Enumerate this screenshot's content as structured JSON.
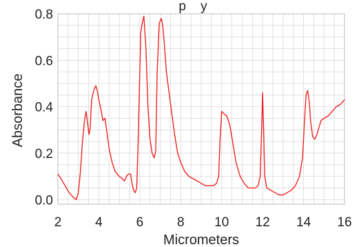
{
  "chart_data": {
    "type": "line",
    "title_fragment": "p    y",
    "xlabel": "Micrometers",
    "ylabel": "Absorbance",
    "xlim": [
      2,
      16
    ],
    "ylim": [
      -0.02,
      0.8
    ],
    "x_ticks": [
      "2",
      "4",
      "6",
      "8",
      "10",
      "12",
      "14",
      "16"
    ],
    "y_ticks": [
      "0.0",
      "0.2",
      "0.4",
      "0.6",
      "0.8"
    ],
    "x_tick_values": [
      2,
      4,
      6,
      8,
      10,
      12,
      14,
      16
    ],
    "y_tick_values": [
      0.0,
      0.2,
      0.4,
      0.6,
      0.8
    ],
    "grid": true,
    "colors": {
      "line": "#ee2222",
      "grid": "#d9d9d9",
      "frame": "#bbbbbb"
    },
    "series": [
      {
        "x": [
          2.0,
          2.15,
          2.35,
          2.55,
          2.75,
          2.9,
          3.0,
          3.1,
          3.2,
          3.3,
          3.38,
          3.45,
          3.52,
          3.58,
          3.65,
          3.75,
          3.85,
          3.92,
          4.0,
          4.1,
          4.2,
          4.3,
          4.38,
          4.5,
          4.65,
          4.8,
          5.0,
          5.15,
          5.25,
          5.35,
          5.45,
          5.55,
          5.62,
          5.7,
          5.78,
          5.85,
          5.92,
          6.0,
          6.05,
          6.12,
          6.2,
          6.3,
          6.4,
          6.5,
          6.6,
          6.7,
          6.78,
          6.85,
          6.95,
          7.05,
          7.12,
          7.2,
          7.3,
          7.4,
          7.55,
          7.7,
          7.85,
          8.0,
          8.2,
          8.4,
          8.6,
          8.8,
          9.0,
          9.2,
          9.4,
          9.6,
          9.75,
          9.85,
          9.92,
          10.0,
          10.1,
          10.25,
          10.4,
          10.55,
          10.7,
          10.9,
          11.1,
          11.3,
          11.5,
          11.65,
          11.78,
          11.88,
          11.95,
          12.0,
          12.05,
          12.1,
          12.2,
          12.4,
          12.6,
          12.8,
          13.0,
          13.2,
          13.4,
          13.6,
          13.8,
          13.95,
          14.05,
          14.12,
          14.2,
          14.28,
          14.35,
          14.45,
          14.55,
          14.65,
          14.75,
          14.85,
          15.0,
          15.2,
          15.4,
          15.6,
          15.8,
          16.0
        ],
        "y": [
          0.11,
          0.09,
          0.06,
          0.03,
          0.01,
          0.0,
          0.03,
          0.12,
          0.25,
          0.34,
          0.38,
          0.33,
          0.28,
          0.31,
          0.43,
          0.47,
          0.49,
          0.47,
          0.43,
          0.39,
          0.34,
          0.35,
          0.3,
          0.22,
          0.16,
          0.12,
          0.1,
          0.09,
          0.08,
          0.1,
          0.11,
          0.11,
          0.07,
          0.04,
          0.03,
          0.05,
          0.25,
          0.55,
          0.72,
          0.76,
          0.79,
          0.65,
          0.4,
          0.26,
          0.2,
          0.18,
          0.21,
          0.55,
          0.76,
          0.78,
          0.75,
          0.67,
          0.55,
          0.48,
          0.38,
          0.28,
          0.2,
          0.16,
          0.12,
          0.1,
          0.09,
          0.08,
          0.07,
          0.06,
          0.06,
          0.06,
          0.07,
          0.1,
          0.25,
          0.38,
          0.37,
          0.36,
          0.32,
          0.24,
          0.16,
          0.1,
          0.07,
          0.05,
          0.05,
          0.05,
          0.06,
          0.1,
          0.3,
          0.46,
          0.3,
          0.1,
          0.05,
          0.04,
          0.03,
          0.02,
          0.02,
          0.03,
          0.04,
          0.06,
          0.1,
          0.18,
          0.35,
          0.45,
          0.47,
          0.42,
          0.33,
          0.27,
          0.26,
          0.28,
          0.31,
          0.34,
          0.35,
          0.36,
          0.38,
          0.4,
          0.41,
          0.43
        ]
      }
    ]
  }
}
